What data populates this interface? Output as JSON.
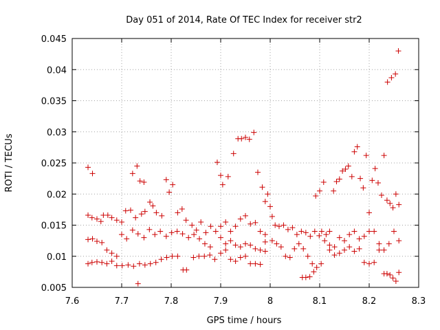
{
  "chart_data": {
    "type": "scatter",
    "title": "Day 051 of 2014, Rate Of TEC Index for receiver str2",
    "xlabel": "GPS time / hours",
    "ylabel": "ROTI / TECUs",
    "xlim": [
      7.6,
      8.3
    ],
    "ylim": [
      0.005,
      0.045
    ],
    "xticks": [
      "7.6",
      "7.7",
      "7.8",
      "7.9",
      "8",
      "8.1",
      "8.2",
      "8.3"
    ],
    "yticks": [
      "0.005",
      "0.01",
      "0.015",
      "0.02",
      "0.025",
      "0.03",
      "0.035",
      "0.04",
      "0.045"
    ],
    "grid": true,
    "marker": "+",
    "color": "#cc0000",
    "series": [
      {
        "name": "ROTI",
        "points": [
          [
            7.632,
            0.0243
          ],
          [
            7.641,
            0.0233
          ],
          [
            7.731,
            0.0245
          ],
          [
            7.722,
            0.0233
          ],
          [
            7.737,
            0.0221
          ],
          [
            7.745,
            0.0219
          ],
          [
            7.79,
            0.0223
          ],
          [
            7.803,
            0.0215
          ],
          [
            7.796,
            0.0203
          ],
          [
            7.757,
            0.0187
          ],
          [
            7.747,
            0.0172
          ],
          [
            7.763,
            0.0181
          ],
          [
            7.632,
            0.0166
          ],
          [
            7.64,
            0.0162
          ],
          [
            7.65,
            0.016
          ],
          [
            7.658,
            0.0156
          ],
          [
            7.663,
            0.0166
          ],
          [
            7.672,
            0.0166
          ],
          [
            7.68,
            0.0162
          ],
          [
            7.69,
            0.0158
          ],
          [
            7.7,
            0.0155
          ],
          [
            7.708,
            0.0173
          ],
          [
            7.718,
            0.0174
          ],
          [
            7.728,
            0.0162
          ],
          [
            7.74,
            0.0168
          ],
          [
            7.77,
            0.017
          ],
          [
            7.781,
            0.0165
          ],
          [
            7.813,
            0.017
          ],
          [
            7.822,
            0.0176
          ],
          [
            7.83,
            0.0158
          ],
          [
            7.842,
            0.015
          ],
          [
            7.851,
            0.0142
          ],
          [
            7.86,
            0.0155
          ],
          [
            7.87,
            0.0138
          ],
          [
            7.88,
            0.0148
          ],
          [
            7.89,
            0.014
          ],
          [
            7.632,
            0.0127
          ],
          [
            7.641,
            0.0128
          ],
          [
            7.65,
            0.0124
          ],
          [
            7.66,
            0.0122
          ],
          [
            7.67,
            0.011
          ],
          [
            7.68,
            0.0105
          ],
          [
            7.69,
            0.01
          ],
          [
            7.7,
            0.0135
          ],
          [
            7.71,
            0.0128
          ],
          [
            7.722,
            0.0142
          ],
          [
            7.733,
            0.0136
          ],
          [
            7.745,
            0.013
          ],
          [
            7.756,
            0.0143
          ],
          [
            7.767,
            0.0135
          ],
          [
            7.778,
            0.014
          ],
          [
            7.79,
            0.0132
          ],
          [
            7.801,
            0.0138
          ],
          [
            7.812,
            0.014
          ],
          [
            7.823,
            0.0136
          ],
          [
            7.835,
            0.013
          ],
          [
            7.846,
            0.0135
          ],
          [
            7.857,
            0.0128
          ],
          [
            7.868,
            0.012
          ],
          [
            7.879,
            0.0115
          ],
          [
            7.632,
            0.0088
          ],
          [
            7.64,
            0.009
          ],
          [
            7.65,
            0.0091
          ],
          [
            7.66,
            0.009
          ],
          [
            7.67,
            0.0088
          ],
          [
            7.68,
            0.0092
          ],
          [
            7.69,
            0.0085
          ],
          [
            7.701,
            0.0085
          ],
          [
            7.713,
            0.0086
          ],
          [
            7.724,
            0.0084
          ],
          [
            7.736,
            0.0088
          ],
          [
            7.747,
            0.0086
          ],
          [
            7.758,
            0.0088
          ],
          [
            7.769,
            0.009
          ],
          [
            7.78,
            0.0095
          ],
          [
            7.791,
            0.0098
          ],
          [
            7.802,
            0.01
          ],
          [
            7.813,
            0.01
          ],
          [
            7.824,
            0.0078
          ],
          [
            7.831,
            0.0078
          ],
          [
            7.845,
            0.0098
          ],
          [
            7.856,
            0.01
          ],
          [
            7.867,
            0.01
          ],
          [
            7.878,
            0.0102
          ],
          [
            7.733,
            0.0056
          ],
          [
            7.888,
            0.0095
          ],
          [
            7.893,
            0.0251
          ],
          [
            7.9,
            0.023
          ],
          [
            7.904,
            0.0215
          ],
          [
            7.915,
            0.0228
          ],
          [
            7.926,
            0.0265
          ],
          [
            7.935,
            0.0289
          ],
          [
            7.942,
            0.0289
          ],
          [
            7.95,
            0.0291
          ],
          [
            7.958,
            0.0288
          ],
          [
            7.967,
            0.0299
          ],
          [
            7.975,
            0.0235
          ],
          [
            7.984,
            0.0211
          ],
          [
            7.99,
            0.0188
          ],
          [
            8.0,
            0.018
          ],
          [
            7.995,
            0.02
          ],
          [
            7.9,
            0.0148
          ],
          [
            7.91,
            0.0155
          ],
          [
            7.92,
            0.014
          ],
          [
            7.93,
            0.0148
          ],
          [
            7.94,
            0.016
          ],
          [
            7.95,
            0.0165
          ],
          [
            7.96,
            0.0152
          ],
          [
            7.97,
            0.0154
          ],
          [
            7.98,
            0.014
          ],
          [
            7.99,
            0.0135
          ],
          [
            7.9,
            0.013
          ],
          [
            7.91,
            0.012
          ],
          [
            7.92,
            0.0125
          ],
          [
            7.93,
            0.0118
          ],
          [
            7.94,
            0.0115
          ],
          [
            7.95,
            0.012
          ],
          [
            7.96,
            0.0118
          ],
          [
            7.97,
            0.0112
          ],
          [
            7.98,
            0.011
          ],
          [
            7.99,
            0.0123
          ],
          [
            7.9,
            0.0105
          ],
          [
            7.91,
            0.011
          ],
          [
            7.92,
            0.0095
          ],
          [
            7.93,
            0.0092
          ],
          [
            7.94,
            0.0098
          ],
          [
            7.95,
            0.01
          ],
          [
            7.96,
            0.0088
          ],
          [
            7.97,
            0.0088
          ],
          [
            7.98,
            0.0087
          ],
          [
            7.99,
            0.0108
          ],
          [
            8.004,
            0.0164
          ],
          [
            8.01,
            0.015
          ],
          [
            8.018,
            0.0148
          ],
          [
            8.027,
            0.015
          ],
          [
            8.036,
            0.0143
          ],
          [
            8.045,
            0.0146
          ],
          [
            8.054,
            0.0135
          ],
          [
            8.063,
            0.014
          ],
          [
            8.072,
            0.0138
          ],
          [
            8.081,
            0.0132
          ],
          [
            8.09,
            0.014
          ],
          [
            8.099,
            0.0133
          ],
          [
            8.004,
            0.0125
          ],
          [
            8.013,
            0.012
          ],
          [
            8.022,
            0.0115
          ],
          [
            8.031,
            0.01
          ],
          [
            8.04,
            0.0098
          ],
          [
            8.049,
            0.0112
          ],
          [
            8.058,
            0.012
          ],
          [
            8.067,
            0.0112
          ],
          [
            8.076,
            0.01
          ],
          [
            8.085,
            0.0088
          ],
          [
            8.094,
            0.0082
          ],
          [
            8.103,
            0.0088
          ],
          [
            8.065,
            0.0066
          ],
          [
            8.072,
            0.0066
          ],
          [
            8.08,
            0.0067
          ],
          [
            8.088,
            0.0075
          ],
          [
            8.092,
            0.0197
          ],
          [
            8.1,
            0.0205
          ],
          [
            8.108,
            0.0219
          ],
          [
            8.104,
            0.014
          ],
          [
            8.113,
            0.0135
          ],
          [
            8.12,
            0.014
          ],
          [
            8.128,
            0.0205
          ],
          [
            8.134,
            0.022
          ],
          [
            8.14,
            0.0224
          ],
          [
            8.146,
            0.0237
          ],
          [
            8.152,
            0.024
          ],
          [
            8.158,
            0.0245
          ],
          [
            8.165,
            0.0228
          ],
          [
            8.17,
            0.0268
          ],
          [
            8.176,
            0.0276
          ],
          [
            8.182,
            0.0225
          ],
          [
            8.188,
            0.021
          ],
          [
            8.194,
            0.0262
          ],
          [
            8.11,
            0.0125
          ],
          [
            8.12,
            0.0118
          ],
          [
            8.13,
            0.0115
          ],
          [
            8.14,
            0.013
          ],
          [
            8.15,
            0.0125
          ],
          [
            8.16,
            0.0135
          ],
          [
            8.17,
            0.014
          ],
          [
            8.18,
            0.0128
          ],
          [
            8.19,
            0.0132
          ],
          [
            8.12,
            0.011
          ],
          [
            8.13,
            0.0102
          ],
          [
            8.14,
            0.0105
          ],
          [
            8.15,
            0.011
          ],
          [
            8.16,
            0.0115
          ],
          [
            8.17,
            0.0108
          ],
          [
            8.18,
            0.0112
          ],
          [
            8.19,
            0.009
          ],
          [
            8.2,
            0.0088
          ],
          [
            8.21,
            0.009
          ],
          [
            8.2,
            0.017
          ],
          [
            8.206,
            0.0222
          ],
          [
            8.212,
            0.0241
          ],
          [
            8.218,
            0.0218
          ],
          [
            8.225,
            0.0198
          ],
          [
            8.23,
            0.0262
          ],
          [
            8.236,
            0.019
          ],
          [
            8.242,
            0.0185
          ],
          [
            8.248,
            0.0178
          ],
          [
            8.254,
            0.02
          ],
          [
            8.26,
            0.0183
          ],
          [
            8.2,
            0.014
          ],
          [
            8.21,
            0.014
          ],
          [
            8.22,
            0.012
          ],
          [
            8.23,
            0.011
          ],
          [
            8.24,
            0.012
          ],
          [
            8.25,
            0.014
          ],
          [
            8.26,
            0.0125
          ],
          [
            8.22,
            0.011
          ],
          [
            8.23,
            0.0072
          ],
          [
            8.236,
            0.0072
          ],
          [
            8.242,
            0.007
          ],
          [
            8.248,
            0.0065
          ],
          [
            8.254,
            0.006
          ],
          [
            8.26,
            0.0074
          ],
          [
            8.237,
            0.038
          ],
          [
            8.245,
            0.0387
          ],
          [
            8.253,
            0.0393
          ],
          [
            8.259,
            0.043
          ]
        ]
      }
    ]
  }
}
